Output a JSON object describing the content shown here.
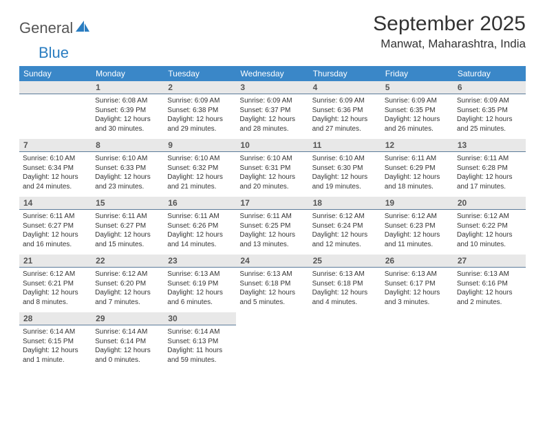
{
  "logo": {
    "text1": "General",
    "text2": "Blue"
  },
  "title": "September 2025",
  "location": "Manwat, Maharashtra, India",
  "colors": {
    "header_bg": "#3a87c8",
    "daynum_bg": "#e8e8e8",
    "daynum_border": "#5a7a99",
    "logo_blue": "#2a7dc1"
  },
  "dow": [
    "Sunday",
    "Monday",
    "Tuesday",
    "Wednesday",
    "Thursday",
    "Friday",
    "Saturday"
  ],
  "weeks": [
    [
      {
        "n": "",
        "sr": "",
        "ss": "",
        "dl": ""
      },
      {
        "n": "1",
        "sr": "Sunrise: 6:08 AM",
        "ss": "Sunset: 6:39 PM",
        "dl": "Daylight: 12 hours and 30 minutes."
      },
      {
        "n": "2",
        "sr": "Sunrise: 6:09 AM",
        "ss": "Sunset: 6:38 PM",
        "dl": "Daylight: 12 hours and 29 minutes."
      },
      {
        "n": "3",
        "sr": "Sunrise: 6:09 AM",
        "ss": "Sunset: 6:37 PM",
        "dl": "Daylight: 12 hours and 28 minutes."
      },
      {
        "n": "4",
        "sr": "Sunrise: 6:09 AM",
        "ss": "Sunset: 6:36 PM",
        "dl": "Daylight: 12 hours and 27 minutes."
      },
      {
        "n": "5",
        "sr": "Sunrise: 6:09 AM",
        "ss": "Sunset: 6:35 PM",
        "dl": "Daylight: 12 hours and 26 minutes."
      },
      {
        "n": "6",
        "sr": "Sunrise: 6:09 AM",
        "ss": "Sunset: 6:35 PM",
        "dl": "Daylight: 12 hours and 25 minutes."
      }
    ],
    [
      {
        "n": "7",
        "sr": "Sunrise: 6:10 AM",
        "ss": "Sunset: 6:34 PM",
        "dl": "Daylight: 12 hours and 24 minutes."
      },
      {
        "n": "8",
        "sr": "Sunrise: 6:10 AM",
        "ss": "Sunset: 6:33 PM",
        "dl": "Daylight: 12 hours and 23 minutes."
      },
      {
        "n": "9",
        "sr": "Sunrise: 6:10 AM",
        "ss": "Sunset: 6:32 PM",
        "dl": "Daylight: 12 hours and 21 minutes."
      },
      {
        "n": "10",
        "sr": "Sunrise: 6:10 AM",
        "ss": "Sunset: 6:31 PM",
        "dl": "Daylight: 12 hours and 20 minutes."
      },
      {
        "n": "11",
        "sr": "Sunrise: 6:10 AM",
        "ss": "Sunset: 6:30 PM",
        "dl": "Daylight: 12 hours and 19 minutes."
      },
      {
        "n": "12",
        "sr": "Sunrise: 6:11 AM",
        "ss": "Sunset: 6:29 PM",
        "dl": "Daylight: 12 hours and 18 minutes."
      },
      {
        "n": "13",
        "sr": "Sunrise: 6:11 AM",
        "ss": "Sunset: 6:28 PM",
        "dl": "Daylight: 12 hours and 17 minutes."
      }
    ],
    [
      {
        "n": "14",
        "sr": "Sunrise: 6:11 AM",
        "ss": "Sunset: 6:27 PM",
        "dl": "Daylight: 12 hours and 16 minutes."
      },
      {
        "n": "15",
        "sr": "Sunrise: 6:11 AM",
        "ss": "Sunset: 6:27 PM",
        "dl": "Daylight: 12 hours and 15 minutes."
      },
      {
        "n": "16",
        "sr": "Sunrise: 6:11 AM",
        "ss": "Sunset: 6:26 PM",
        "dl": "Daylight: 12 hours and 14 minutes."
      },
      {
        "n": "17",
        "sr": "Sunrise: 6:11 AM",
        "ss": "Sunset: 6:25 PM",
        "dl": "Daylight: 12 hours and 13 minutes."
      },
      {
        "n": "18",
        "sr": "Sunrise: 6:12 AM",
        "ss": "Sunset: 6:24 PM",
        "dl": "Daylight: 12 hours and 12 minutes."
      },
      {
        "n": "19",
        "sr": "Sunrise: 6:12 AM",
        "ss": "Sunset: 6:23 PM",
        "dl": "Daylight: 12 hours and 11 minutes."
      },
      {
        "n": "20",
        "sr": "Sunrise: 6:12 AM",
        "ss": "Sunset: 6:22 PM",
        "dl": "Daylight: 12 hours and 10 minutes."
      }
    ],
    [
      {
        "n": "21",
        "sr": "Sunrise: 6:12 AM",
        "ss": "Sunset: 6:21 PM",
        "dl": "Daylight: 12 hours and 8 minutes."
      },
      {
        "n": "22",
        "sr": "Sunrise: 6:12 AM",
        "ss": "Sunset: 6:20 PM",
        "dl": "Daylight: 12 hours and 7 minutes."
      },
      {
        "n": "23",
        "sr": "Sunrise: 6:13 AM",
        "ss": "Sunset: 6:19 PM",
        "dl": "Daylight: 12 hours and 6 minutes."
      },
      {
        "n": "24",
        "sr": "Sunrise: 6:13 AM",
        "ss": "Sunset: 6:18 PM",
        "dl": "Daylight: 12 hours and 5 minutes."
      },
      {
        "n": "25",
        "sr": "Sunrise: 6:13 AM",
        "ss": "Sunset: 6:18 PM",
        "dl": "Daylight: 12 hours and 4 minutes."
      },
      {
        "n": "26",
        "sr": "Sunrise: 6:13 AM",
        "ss": "Sunset: 6:17 PM",
        "dl": "Daylight: 12 hours and 3 minutes."
      },
      {
        "n": "27",
        "sr": "Sunrise: 6:13 AM",
        "ss": "Sunset: 6:16 PM",
        "dl": "Daylight: 12 hours and 2 minutes."
      }
    ],
    [
      {
        "n": "28",
        "sr": "Sunrise: 6:14 AM",
        "ss": "Sunset: 6:15 PM",
        "dl": "Daylight: 12 hours and 1 minute."
      },
      {
        "n": "29",
        "sr": "Sunrise: 6:14 AM",
        "ss": "Sunset: 6:14 PM",
        "dl": "Daylight: 12 hours and 0 minutes."
      },
      {
        "n": "30",
        "sr": "Sunrise: 6:14 AM",
        "ss": "Sunset: 6:13 PM",
        "dl": "Daylight: 11 hours and 59 minutes."
      },
      {
        "n": "",
        "sr": "",
        "ss": "",
        "dl": ""
      },
      {
        "n": "",
        "sr": "",
        "ss": "",
        "dl": ""
      },
      {
        "n": "",
        "sr": "",
        "ss": "",
        "dl": ""
      },
      {
        "n": "",
        "sr": "",
        "ss": "",
        "dl": ""
      }
    ]
  ]
}
